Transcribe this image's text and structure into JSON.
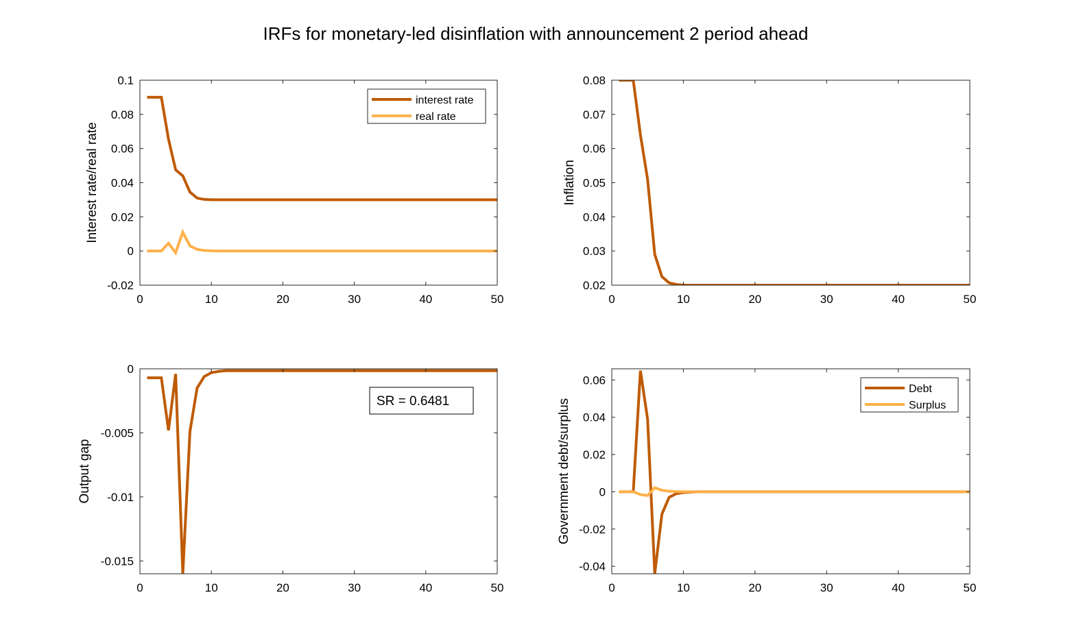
{
  "figure": {
    "title": "IRFs for monetary-led disinflation with announcement 2 period ahead"
  },
  "colors": {
    "dark": "#BF5B04",
    "light": "#FDB04A"
  },
  "chart_data": [
    {
      "type": "line",
      "ylabel": "Interest rate/real rate",
      "xlim": [
        0,
        50
      ],
      "ylim": [
        -0.02,
        0.1
      ],
      "xticks": [
        "0",
        "10",
        "20",
        "30",
        "40",
        "50"
      ],
      "yticks": [
        "-0.02",
        "0",
        "0.02",
        "0.04",
        "0.06",
        "0.08",
        "0.1"
      ],
      "legend": {
        "position": "top-right"
      },
      "series": [
        {
          "name": "interest rate",
          "x": [
            1,
            2,
            3,
            4,
            5,
            6,
            7,
            8,
            9,
            10,
            11,
            12,
            13,
            15,
            20,
            30,
            40,
            50
          ],
          "values": [
            0.09,
            0.09,
            0.09,
            0.0655,
            0.0475,
            0.044,
            0.0345,
            0.031,
            0.0302,
            0.03,
            0.03,
            0.03,
            0.03,
            0.03,
            0.03,
            0.03,
            0.03,
            0.03
          ]
        },
        {
          "name": "real rate",
          "x": [
            1,
            2,
            3,
            4,
            5,
            6,
            7,
            8,
            9,
            10,
            11,
            12,
            13,
            15,
            20,
            30,
            40,
            50
          ],
          "values": [
            0,
            0,
            0,
            0.0045,
            -0.001,
            0.011,
            0.003,
            0.001,
            0.0003,
            0.0001,
            0,
            0,
            0,
            0,
            0,
            0,
            0,
            0
          ]
        }
      ]
    },
    {
      "type": "line",
      "ylabel": "Inflation",
      "xlim": [
        0,
        50
      ],
      "ylim": [
        0.02,
        0.08
      ],
      "xticks": [
        "0",
        "10",
        "20",
        "30",
        "40",
        "50"
      ],
      "yticks": [
        "0.02",
        "0.03",
        "0.04",
        "0.05",
        "0.06",
        "0.07",
        "0.08"
      ],
      "series": [
        {
          "x": [
            1,
            2,
            3,
            4,
            5,
            6,
            7,
            8,
            9,
            10,
            11,
            12,
            15,
            20,
            30,
            40,
            50
          ],
          "values": [
            0.08,
            0.08,
            0.08,
            0.064,
            0.051,
            0.029,
            0.0225,
            0.0207,
            0.0202,
            0.02,
            0.02,
            0.02,
            0.02,
            0.02,
            0.02,
            0.02,
            0.02
          ]
        }
      ]
    },
    {
      "type": "line",
      "ylabel": "Output gap",
      "xlim": [
        0,
        50
      ],
      "ylim": [
        -0.016,
        0
      ],
      "xticks": [
        "0",
        "10",
        "20",
        "30",
        "40",
        "50"
      ],
      "yticks": [
        "-0.015",
        "-0.01",
        "-0.005",
        "0"
      ],
      "annotation": "SR = 0.6481",
      "series": [
        {
          "x": [
            1,
            2,
            3,
            4,
            5,
            6,
            7,
            8,
            9,
            10,
            11,
            12,
            13,
            15,
            20,
            30,
            40,
            50
          ],
          "values": [
            -0.0007,
            -0.0007,
            -0.0007,
            -0.0048,
            -0.0004,
            -0.016,
            -0.0049,
            -0.0015,
            -0.0006,
            -0.0003,
            -0.0002,
            -0.00015,
            -0.00015,
            -0.00015,
            -0.00015,
            -0.00015,
            -0.00015,
            -0.00015
          ]
        }
      ]
    },
    {
      "type": "line",
      "ylabel": "Government debt/surplus",
      "xlim": [
        0,
        50
      ],
      "ylim": [
        -0.044,
        0.066
      ],
      "xticks": [
        "0",
        "10",
        "20",
        "30",
        "40",
        "50"
      ],
      "yticks": [
        "-0.04",
        "-0.02",
        "0",
        "0.02",
        "0.04",
        "0.06"
      ],
      "legend": {
        "position": "top-right"
      },
      "series": [
        {
          "name": "Debt",
          "x": [
            1,
            2,
            3,
            4,
            5,
            6,
            7,
            8,
            9,
            10,
            11,
            12,
            15,
            20,
            30,
            40,
            50
          ],
          "values": [
            0,
            0,
            0,
            0.065,
            0.039,
            -0.044,
            -0.012,
            -0.003,
            -0.001,
            -0.0004,
            -0.0002,
            0,
            0,
            0,
            0,
            0,
            0
          ]
        },
        {
          "name": "Surplus",
          "x": [
            1,
            2,
            3,
            4,
            5,
            6,
            7,
            8,
            9,
            10,
            11,
            12,
            15,
            20,
            30,
            40,
            50
          ],
          "values": [
            0,
            0,
            0,
            -0.0015,
            -0.002,
            0.0022,
            0.0008,
            0.0003,
            0.0001,
            0,
            0,
            0,
            0,
            0,
            0,
            0,
            0
          ]
        }
      ]
    }
  ]
}
